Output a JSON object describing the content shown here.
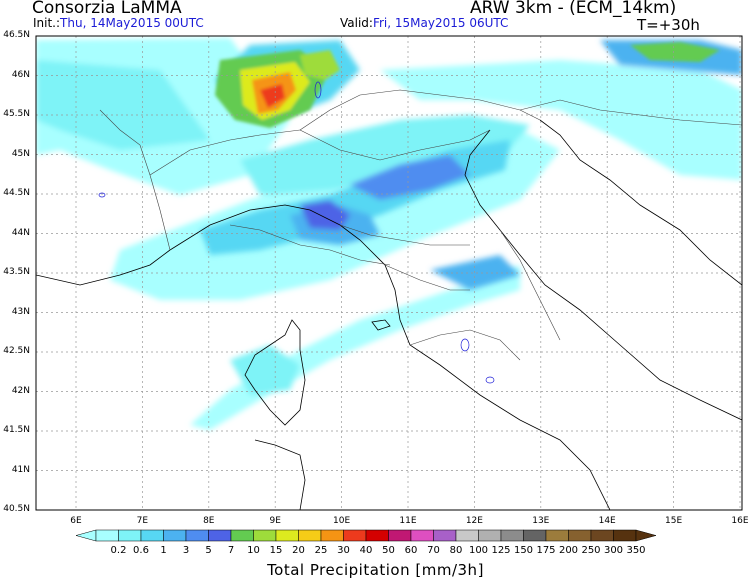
{
  "header": {
    "organization": "Consorzia LaMMA",
    "model": "ARW 3km  -  (ECM_14km)",
    "init_label": "Init.:",
    "init_value": "Thu, 14May2015 00UTC",
    "valid_label": "Valid:",
    "valid_value": "Fri, 15May2015 06UTC",
    "lead_time": "T=+30h"
  },
  "latitude_labels": [
    "46.5N",
    "46N",
    "45.5N",
    "45N",
    "44.5N",
    "44N",
    "43.5N",
    "43N",
    "42.5N",
    "42N",
    "41.5N",
    "41N",
    "40.5N"
  ],
  "longitude_labels": [
    "6E",
    "7E",
    "8E",
    "9E",
    "10E",
    "11E",
    "12E",
    "13E",
    "14E",
    "15E",
    "16E"
  ],
  "colorbar": {
    "labels": [
      "0.2",
      "0.6",
      "1",
      "3",
      "5",
      "7",
      "10",
      "15",
      "20",
      "25",
      "30",
      "40",
      "50",
      "60",
      "70",
      "80",
      "100",
      "125",
      "150",
      "175",
      "200",
      "250",
      "300",
      "350"
    ],
    "colors": [
      "#a8ffff",
      "#7ef3f7",
      "#57d7f3",
      "#4cb2f0",
      "#4f8df0",
      "#4e63e6",
      "#63cb51",
      "#9edc3b",
      "#ddea1f",
      "#f6cc17",
      "#f59414",
      "#ed3a1d",
      "#d40000",
      "#c01873",
      "#de4fc0",
      "#a860c8",
      "#c8c8c8",
      "#b0b0b0",
      "#8c8c8c",
      "#646464",
      "#9c7c3c",
      "#86612f",
      "#6c4620",
      "#56320f"
    ],
    "title": "Total Precipitation [mm/3h]"
  }
}
